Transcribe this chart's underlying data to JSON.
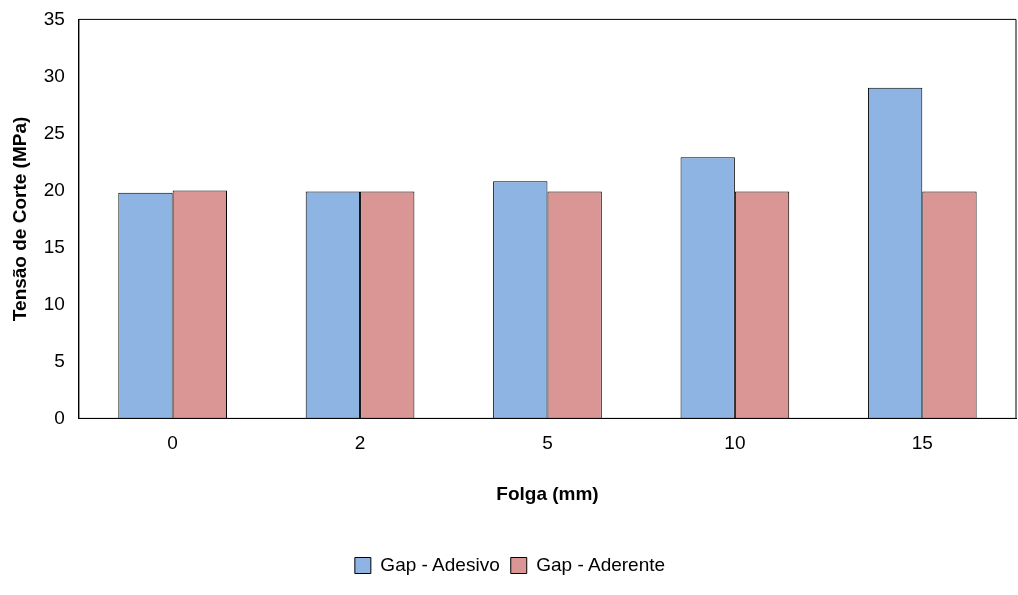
{
  "chart_data": {
    "type": "bar",
    "xlabel": "Folga (mm)",
    "ylabel": "Tensão de Corte (MPa)",
    "categories": [
      "0",
      "2",
      "5",
      "10",
      "15"
    ],
    "series": [
      {
        "name": "Gap - Adesivo",
        "color": "#8db4e2",
        "values": [
          19.8,
          19.9,
          20.8,
          22.9,
          29.0
        ]
      },
      {
        "name": "Gap - Aderente",
        "color": "#d99694",
        "values": [
          20.0,
          19.9,
          19.9,
          19.9,
          19.9
        ]
      }
    ],
    "ylim": [
      0,
      35
    ],
    "yticks": [
      0,
      5,
      10,
      15,
      20,
      25,
      30,
      35
    ],
    "grid": false,
    "legend": "bottom"
  }
}
